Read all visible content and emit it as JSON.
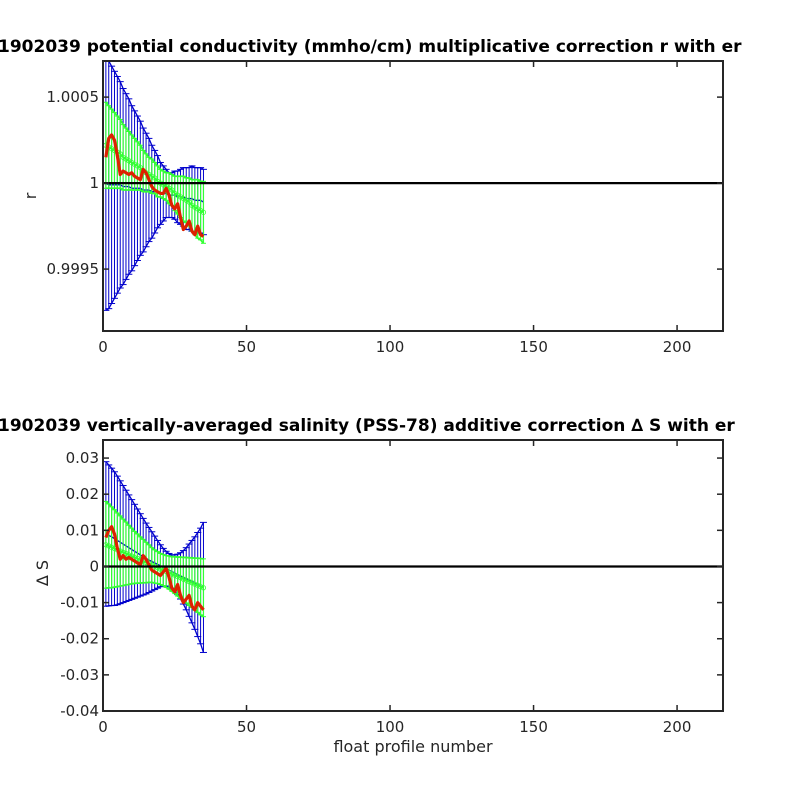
{
  "chart_data": [
    {
      "type": "line",
      "title": "1902039 potential conductivity (mmho/cm) multiplicative correction r with er",
      "xlabel": "",
      "ylabel": "r",
      "xlim": [
        0,
        216
      ],
      "ylim": [
        0.99914,
        1.00071
      ],
      "xticks": [
        0,
        50,
        100,
        150,
        200
      ],
      "xtick_labels": [
        "0",
        "50",
        "100",
        "150",
        "200"
      ],
      "yticks": [
        0.9995,
        1,
        1.0005
      ],
      "ytick_labels": [
        "0.9995",
        "1",
        "1.0005"
      ],
      "grid": false,
      "legend": "none",
      "colors": {
        "blue": "#0000cc",
        "green": "#33ff33",
        "red": "#dd2200",
        "ref": "#000000"
      },
      "reference_line": 1,
      "x": [
        1,
        2,
        3,
        4,
        5,
        6,
        7,
        8,
        9,
        10,
        11,
        12,
        13,
        14,
        15,
        16,
        17,
        18,
        19,
        20,
        21,
        22,
        23,
        24,
        25,
        26,
        27,
        28,
        29,
        30,
        31,
        32,
        33,
        34,
        35
      ],
      "series": [
        {
          "role": "fit_with_wide_errorbars",
          "color": "#0000cc",
          "values": [
            1.0,
            0.99999,
            0.99999,
            0.99999,
            0.99999,
            0.99999,
            0.99998,
            0.99998,
            0.99998,
            0.99997,
            0.99997,
            0.99997,
            0.99997,
            0.99996,
            0.99996,
            0.99996,
            0.99995,
            0.99995,
            0.99995,
            0.99994,
            0.99994,
            0.99994,
            0.99993,
            0.99993,
            0.99993,
            0.99992,
            0.99992,
            0.99992,
            0.99991,
            0.99991,
            0.99991,
            0.9999,
            0.9999,
            0.9999,
            0.99989
          ],
          "err": [
            0.00074,
            0.00072,
            0.00069,
            0.00066,
            0.00063,
            0.0006,
            0.00057,
            0.00054,
            0.00051,
            0.00048,
            0.00045,
            0.00042,
            0.00039,
            0.00036,
            0.00033,
            0.0003,
            0.00027,
            0.00024,
            0.00021,
            0.00018,
            0.00016,
            0.00014,
            0.00013,
            0.00013,
            0.00014,
            0.00015,
            0.00016,
            0.00017,
            0.00018,
            0.00018,
            0.00019,
            0.00019,
            0.00019,
            0.00019,
            0.00019
          ]
        },
        {
          "role": "fit_with_narrow_errorbars",
          "color": "#33ff33",
          "values": [
            1.00022,
            1.00021,
            1.0002,
            1.00019,
            1.00018,
            1.00017,
            1.00015,
            1.00014,
            1.00013,
            1.00012,
            1.00011,
            1.0001,
            1.00009,
            1.00007,
            1.00006,
            1.00005,
            1.00004,
            1.00003,
            1.00001,
            1.0,
            0.99999,
            0.99998,
            0.99997,
            0.99996,
            0.99994,
            0.99993,
            0.99992,
            0.99991,
            0.9999,
            0.99989,
            0.99987,
            0.99986,
            0.99985,
            0.99984,
            0.99983
          ],
          "err": [
            0.00025,
            0.00024,
            0.00023,
            0.00022,
            0.00021,
            0.0002,
            0.00019,
            0.00018,
            0.00017,
            0.00016,
            0.00015,
            0.00014,
            0.00013,
            0.00012,
            0.00011,
            0.0001,
            0.0001,
            9e-05,
            9e-05,
            8e-05,
            8e-05,
            8e-05,
            9e-05,
            9e-05,
            0.0001,
            0.00011,
            0.00012,
            0.00013,
            0.00013,
            0.00014,
            0.00015,
            0.00016,
            0.00017,
            0.00017,
            0.00018
          ]
        },
        {
          "role": "measured",
          "color": "#dd2200",
          "values": [
            1.00015,
            1.00026,
            1.00028,
            1.00025,
            1.00016,
            1.00005,
            1.00007,
            1.00006,
            1.00005,
            1.00006,
            1.00004,
            1.00003,
            1.00002,
            1.00008,
            1.00006,
            1.00002,
            0.99998,
            0.99996,
            0.99995,
            0.99994,
            0.99994,
            0.99997,
            0.99993,
            0.99987,
            0.99985,
            0.99988,
            0.9998,
            0.99973,
            0.99975,
            0.99978,
            0.99972,
            0.9997,
            0.99975,
            0.9997,
            0.99969
          ]
        }
      ]
    },
    {
      "type": "line",
      "title": "1902039 vertically-averaged salinity (PSS-78) additive correction ∆ S with er",
      "xlabel": "float profile number",
      "ylabel": "∆ S",
      "xlim": [
        0,
        216
      ],
      "ylim": [
        -0.04,
        0.035
      ],
      "xticks": [
        0,
        50,
        100,
        150,
        200
      ],
      "xtick_labels": [
        "0",
        "50",
        "100",
        "150",
        "200"
      ],
      "yticks": [
        -0.04,
        -0.03,
        -0.02,
        -0.01,
        0,
        0.01,
        0.02,
        0.03
      ],
      "ytick_labels": [
        "-0.04",
        "-0.03",
        "-0.02",
        "-0.01",
        "0",
        "0.01",
        "0.02",
        "0.03"
      ],
      "grid": false,
      "legend": "none",
      "colors": {
        "blue": "#0000cc",
        "green": "#33ff33",
        "red": "#dd2200",
        "ref": "#000000"
      },
      "reference_line": 0,
      "x": [
        1,
        2,
        3,
        4,
        5,
        6,
        7,
        8,
        9,
        10,
        11,
        12,
        13,
        14,
        15,
        16,
        17,
        18,
        19,
        20,
        21,
        22,
        23,
        24,
        25,
        26,
        27,
        28,
        29,
        30,
        31,
        32,
        33,
        34,
        35
      ],
      "series": [
        {
          "role": "fit_with_wide_errorbars",
          "color": "#0000cc",
          "values": [
            0.009,
            0.0086,
            0.0082,
            0.0077,
            0.0072,
            0.0067,
            0.0062,
            0.0057,
            0.0052,
            0.0047,
            0.0042,
            0.0037,
            0.0032,
            0.0027,
            0.0022,
            0.0018,
            0.0014,
            0.001,
            0.0006,
            0.0002,
            -0.0002,
            -0.0006,
            -0.001,
            -0.0014,
            -0.0018,
            -0.0022,
            -0.0026,
            -0.003,
            -0.0034,
            -0.0038,
            -0.0042,
            -0.0046,
            -0.005,
            -0.0054,
            -0.0058
          ],
          "err": [
            0.02,
            0.0195,
            0.019,
            0.0185,
            0.0178,
            0.017,
            0.0162,
            0.0154,
            0.0146,
            0.0138,
            0.013,
            0.0122,
            0.0114,
            0.0106,
            0.0098,
            0.009,
            0.0082,
            0.0074,
            0.0066,
            0.0058,
            0.0052,
            0.0048,
            0.0046,
            0.0046,
            0.005,
            0.0056,
            0.0064,
            0.0074,
            0.0086,
            0.01,
            0.0114,
            0.0128,
            0.0144,
            0.016,
            0.018
          ]
        },
        {
          "role": "fit_with_narrow_errorbars",
          "color": "#33ff33",
          "values": [
            0.006,
            0.0057,
            0.0053,
            0.005,
            0.0046,
            0.0043,
            0.0039,
            0.0036,
            0.0032,
            0.0029,
            0.0025,
            0.0022,
            0.0018,
            0.0015,
            0.0011,
            0.0008,
            0.0004,
            0.0,
            -0.0003,
            -0.0007,
            -0.001,
            -0.0014,
            -0.0017,
            -0.0021,
            -0.0024,
            -0.0028,
            -0.0031,
            -0.0035,
            -0.0038,
            -0.0042,
            -0.0045,
            -0.0049,
            -0.0052,
            -0.0056,
            -0.0059
          ],
          "err": [
            0.012,
            0.0116,
            0.0112,
            0.0107,
            0.0102,
            0.0097,
            0.0092,
            0.0087,
            0.0082,
            0.0077,
            0.0072,
            0.0068,
            0.0064,
            0.006,
            0.0056,
            0.0052,
            0.0048,
            0.0046,
            0.0044,
            0.0043,
            0.0043,
            0.0044,
            0.0046,
            0.0048,
            0.0051,
            0.0054,
            0.0057,
            0.006,
            0.0063,
            0.0066,
            0.0069,
            0.0072,
            0.0075,
            0.0078,
            0.008
          ]
        },
        {
          "role": "measured",
          "color": "#dd2200",
          "values": [
            0.008,
            0.01,
            0.011,
            0.009,
            0.005,
            0.002,
            0.003,
            0.002,
            0.0025,
            0.002,
            0.0015,
            0.001,
            0.0005,
            0.003,
            0.002,
            0.0005,
            -0.001,
            -0.0015,
            -0.002,
            -0.0025,
            -0.0015,
            -0.0005,
            -0.003,
            -0.006,
            -0.007,
            -0.005,
            -0.008,
            -0.01,
            -0.009,
            -0.008,
            -0.011,
            -0.012,
            -0.01,
            -0.011,
            -0.012
          ]
        }
      ]
    }
  ]
}
